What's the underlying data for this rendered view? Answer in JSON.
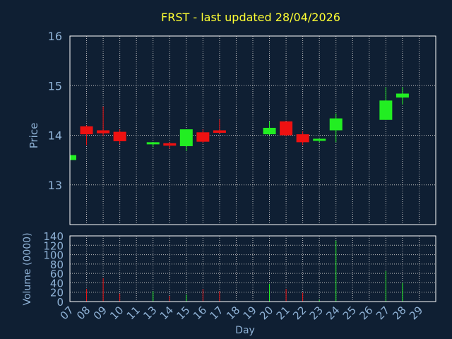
{
  "colors": {
    "background": "#0f1f33",
    "axis": "#ffffff",
    "grid": "#c0c0c0",
    "title": "#ffff33",
    "label": "#8fb2d6",
    "up": "#22ee22",
    "down": "#ee1111"
  },
  "chart_data": [
    {
      "type": "candlestick",
      "title": "FRST - last updated 28/04/2026",
      "ylabel": "Price",
      "ylim": [
        12.2,
        16
      ],
      "yticks": [
        13,
        14,
        15,
        16
      ],
      "grid": true,
      "categories": [
        "07",
        "08",
        "09",
        "10",
        "11",
        "13",
        "14",
        "15",
        "16",
        "17",
        "18",
        "19",
        "20",
        "21",
        "22",
        "23",
        "24",
        "25",
        "26",
        "27",
        "28",
        "29"
      ],
      "candles": [
        {
          "day": "07",
          "open": 13.5,
          "high": 13.62,
          "low": 13.48,
          "close": 13.6
        },
        {
          "day": "08",
          "open": 14.18,
          "high": 14.2,
          "low": 13.8,
          "close": 14.02
        },
        {
          "day": "09",
          "open": 14.1,
          "high": 14.58,
          "low": 13.98,
          "close": 14.04
        },
        {
          "day": "10",
          "open": 14.07,
          "high": 14.12,
          "low": 13.82,
          "close": 13.88
        },
        {
          "day": "13",
          "open": 13.82,
          "high": 13.86,
          "low": 13.76,
          "close": 13.86
        },
        {
          "day": "14",
          "open": 13.84,
          "high": 13.86,
          "low": 13.73,
          "close": 13.79
        },
        {
          "day": "15",
          "open": 13.78,
          "high": 14.12,
          "low": 13.68,
          "close": 14.12
        },
        {
          "day": "16",
          "open": 14.06,
          "high": 14.12,
          "low": 13.84,
          "close": 13.87
        },
        {
          "day": "17",
          "open": 14.1,
          "high": 14.32,
          "low": 14.03,
          "close": 14.05
        },
        {
          "day": "20",
          "open": 14.02,
          "high": 14.28,
          "low": 14.0,
          "close": 14.15
        },
        {
          "day": "21",
          "open": 14.28,
          "high": 14.28,
          "low": 13.98,
          "close": 14.0
        },
        {
          "day": "22",
          "open": 14.02,
          "high": 14.08,
          "low": 13.8,
          "close": 13.86
        },
        {
          "day": "23",
          "open": 13.9,
          "high": 13.93,
          "low": 13.86,
          "close": 13.93
        },
        {
          "day": "24",
          "open": 14.1,
          "high": 14.44,
          "low": 13.86,
          "close": 14.34
        },
        {
          "day": "27",
          "open": 14.31,
          "high": 14.97,
          "low": 14.31,
          "close": 14.7
        },
        {
          "day": "28",
          "open": 14.76,
          "high": 14.97,
          "low": 14.62,
          "close": 14.84
        }
      ]
    },
    {
      "type": "bar",
      "xlabel": "Day",
      "ylabel": "Volume (0000)",
      "ylim": [
        0,
        140
      ],
      "yticks": [
        0,
        20,
        40,
        60,
        80,
        100,
        120,
        140
      ],
      "grid": true,
      "categories": [
        "07",
        "08",
        "09",
        "10",
        "11",
        "13",
        "14",
        "15",
        "16",
        "17",
        "18",
        "19",
        "20",
        "21",
        "22",
        "23",
        "24",
        "25",
        "26",
        "27",
        "28",
        "29"
      ],
      "bars": [
        {
          "day": "07",
          "value": 2,
          "direction": "up"
        },
        {
          "day": "08",
          "value": 27,
          "direction": "down"
        },
        {
          "day": "09",
          "value": 50,
          "direction": "down"
        },
        {
          "day": "10",
          "value": 17,
          "direction": "down"
        },
        {
          "day": "13",
          "value": 22,
          "direction": "up"
        },
        {
          "day": "14",
          "value": 12,
          "direction": "down"
        },
        {
          "day": "15",
          "value": 15,
          "direction": "up"
        },
        {
          "day": "16",
          "value": 27,
          "direction": "down"
        },
        {
          "day": "17",
          "value": 22,
          "direction": "down"
        },
        {
          "day": "20",
          "value": 38,
          "direction": "up"
        },
        {
          "day": "21",
          "value": 27,
          "direction": "down"
        },
        {
          "day": "22",
          "value": 19,
          "direction": "down"
        },
        {
          "day": "23",
          "value": 4,
          "direction": "up"
        },
        {
          "day": "24",
          "value": 130,
          "direction": "up"
        },
        {
          "day": "27",
          "value": 65,
          "direction": "up"
        },
        {
          "day": "28",
          "value": 40,
          "direction": "up"
        }
      ]
    }
  ]
}
